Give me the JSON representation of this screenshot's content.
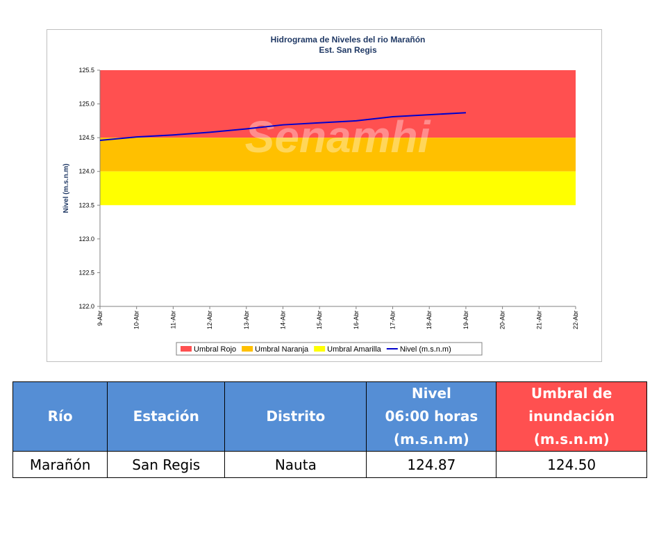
{
  "chart_data": {
    "type": "line",
    "title": "Hidrograma de Niveles del rio Marañón",
    "subtitle": "Est. San Regis",
    "watermark": "Senamhi",
    "y_label": "Nivel (m.s.n.m)",
    "categories": [
      "9-Abr",
      "10-Abr",
      "11-Abr",
      "12-Abr",
      "13-Abr",
      "14-Abr",
      "15-Abr",
      "16-Abr",
      "17-Abr",
      "18-Abr",
      "19-Abr",
      "20-Abr",
      "21-Abr",
      "22-Abr"
    ],
    "bands": [
      {
        "name": "Umbral Rojo",
        "color": "#ff5050",
        "from": 124.5,
        "to": 125.5
      },
      {
        "name": "Umbral Naranja",
        "color": "#ffc000",
        "from": 124.0,
        "to": 124.5
      },
      {
        "name": "Umbral Amarilla",
        "color": "#ffff00",
        "from": 123.5,
        "to": 124.0
      }
    ],
    "series": [
      {
        "name": "Nivel (m.s.n.m)",
        "color": "#0000cc",
        "values": [
          124.46,
          124.51,
          124.54,
          124.58,
          124.63,
          124.69,
          124.72,
          124.75,
          124.81,
          124.84,
          124.87,
          null,
          null,
          null
        ]
      }
    ],
    "ylim": [
      122.0,
      125.5
    ],
    "yticks": [
      {
        "value": 122,
        "label": "122.0"
      },
      122.5,
      {
        "value": 123,
        "label": "123.0"
      },
      123.5,
      {
        "value": 124,
        "label": "124.0"
      },
      124.5,
      {
        "value": 125,
        "label": "125.0"
      },
      125.5
    ],
    "legend": "bottom"
  },
  "table": {
    "header": [
      [
        "Río"
      ],
      [
        "Estación"
      ],
      [
        "Distrito"
      ],
      [
        "Nivel",
        "06:00 horas",
        "(m.s.n.m)"
      ],
      [
        "Umbral de",
        "inundación",
        "(m.s.n.m)"
      ]
    ],
    "rows": [
      [
        "Marañón",
        "San Regis",
        "Nauta",
        "124.87",
        "124.50"
      ]
    ]
  }
}
